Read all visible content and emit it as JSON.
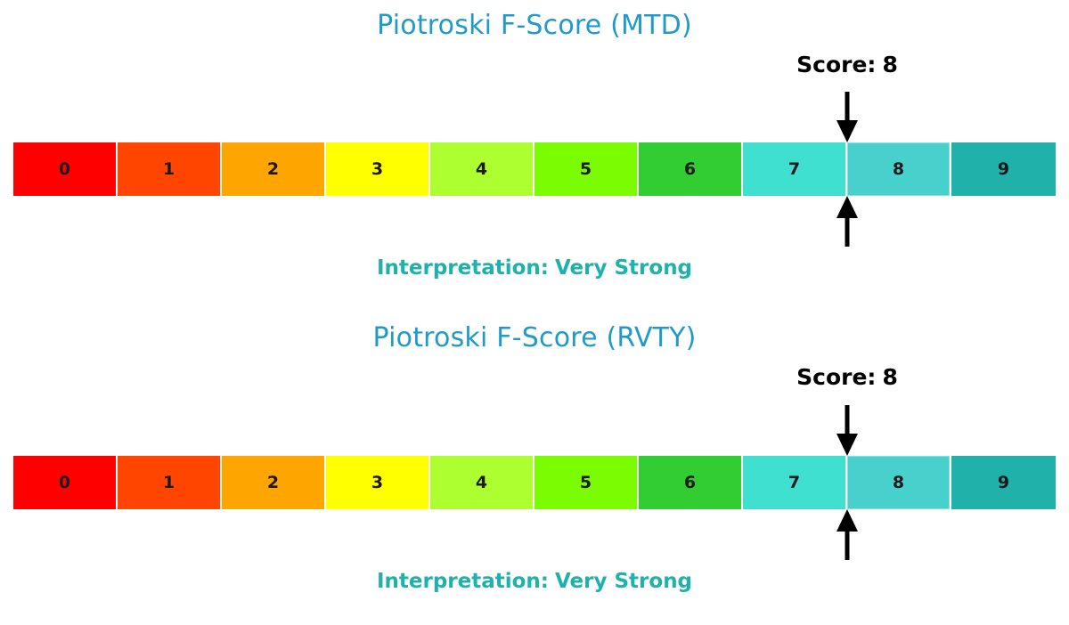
{
  "colors": {
    "title": "#1f9ac9",
    "interpretation": "#20b2aa",
    "segments": [
      "#ff0000",
      "#ff4500",
      "#ffa500",
      "#ffff00",
      "#adff2f",
      "#7cfc00",
      "#32cd32",
      "#40e0d0",
      "#48d1cc",
      "#20b2aa"
    ]
  },
  "chart_data": [
    {
      "type": "gauge",
      "title": "Piotroski F-Score (MTD)",
      "score_label": "Score:",
      "score": 8,
      "score_display": "8",
      "scale": [
        "0",
        "1",
        "2",
        "3",
        "4",
        "5",
        "6",
        "7",
        "8",
        "9"
      ],
      "interpretation_label": "Interpretation:",
      "interpretation": "Very Strong"
    },
    {
      "type": "gauge",
      "title": "Piotroski F-Score (RVTY)",
      "score_label": "Score:",
      "score": 8,
      "score_display": "8",
      "scale": [
        "0",
        "1",
        "2",
        "3",
        "4",
        "5",
        "6",
        "7",
        "8",
        "9"
      ],
      "interpretation_label": "Interpretation:",
      "interpretation": "Very Strong"
    }
  ]
}
